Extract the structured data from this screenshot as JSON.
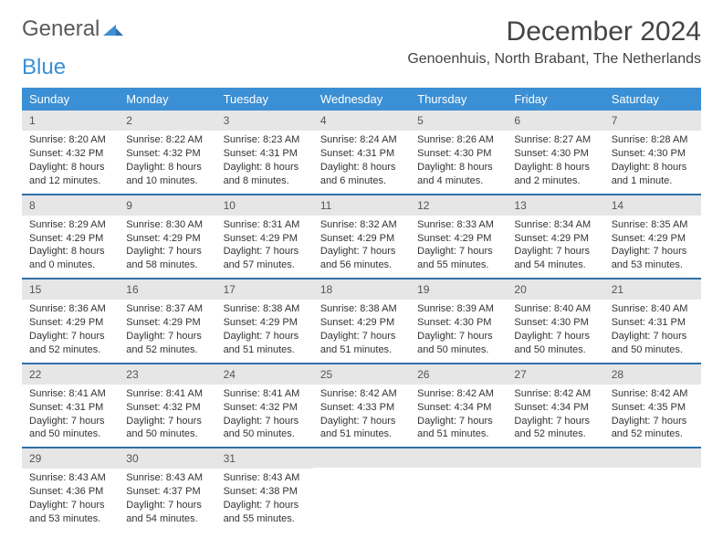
{
  "brand": {
    "part1": "General",
    "part2": "Blue"
  },
  "title": "December 2024",
  "location": "Genoenhuis, North Brabant, The Netherlands",
  "colors": {
    "header_bg": "#3b8fd4",
    "header_text": "#ffffff",
    "daynum_bg": "#e6e6e6",
    "week_divider": "#2f6fa8",
    "body_text": "#333333"
  },
  "dow": [
    "Sunday",
    "Monday",
    "Tuesday",
    "Wednesday",
    "Thursday",
    "Friday",
    "Saturday"
  ],
  "days": [
    {
      "n": "1",
      "sr": "8:20 AM",
      "ss": "4:32 PM",
      "dl": "8 hours and 12 minutes."
    },
    {
      "n": "2",
      "sr": "8:22 AM",
      "ss": "4:32 PM",
      "dl": "8 hours and 10 minutes."
    },
    {
      "n": "3",
      "sr": "8:23 AM",
      "ss": "4:31 PM",
      "dl": "8 hours and 8 minutes."
    },
    {
      "n": "4",
      "sr": "8:24 AM",
      "ss": "4:31 PM",
      "dl": "8 hours and 6 minutes."
    },
    {
      "n": "5",
      "sr": "8:26 AM",
      "ss": "4:30 PM",
      "dl": "8 hours and 4 minutes."
    },
    {
      "n": "6",
      "sr": "8:27 AM",
      "ss": "4:30 PM",
      "dl": "8 hours and 2 minutes."
    },
    {
      "n": "7",
      "sr": "8:28 AM",
      "ss": "4:30 PM",
      "dl": "8 hours and 1 minute."
    },
    {
      "n": "8",
      "sr": "8:29 AM",
      "ss": "4:29 PM",
      "dl": "8 hours and 0 minutes."
    },
    {
      "n": "9",
      "sr": "8:30 AM",
      "ss": "4:29 PM",
      "dl": "7 hours and 58 minutes."
    },
    {
      "n": "10",
      "sr": "8:31 AM",
      "ss": "4:29 PM",
      "dl": "7 hours and 57 minutes."
    },
    {
      "n": "11",
      "sr": "8:32 AM",
      "ss": "4:29 PM",
      "dl": "7 hours and 56 minutes."
    },
    {
      "n": "12",
      "sr": "8:33 AM",
      "ss": "4:29 PM",
      "dl": "7 hours and 55 minutes."
    },
    {
      "n": "13",
      "sr": "8:34 AM",
      "ss": "4:29 PM",
      "dl": "7 hours and 54 minutes."
    },
    {
      "n": "14",
      "sr": "8:35 AM",
      "ss": "4:29 PM",
      "dl": "7 hours and 53 minutes."
    },
    {
      "n": "15",
      "sr": "8:36 AM",
      "ss": "4:29 PM",
      "dl": "7 hours and 52 minutes."
    },
    {
      "n": "16",
      "sr": "8:37 AM",
      "ss": "4:29 PM",
      "dl": "7 hours and 52 minutes."
    },
    {
      "n": "17",
      "sr": "8:38 AM",
      "ss": "4:29 PM",
      "dl": "7 hours and 51 minutes."
    },
    {
      "n": "18",
      "sr": "8:38 AM",
      "ss": "4:29 PM",
      "dl": "7 hours and 51 minutes."
    },
    {
      "n": "19",
      "sr": "8:39 AM",
      "ss": "4:30 PM",
      "dl": "7 hours and 50 minutes."
    },
    {
      "n": "20",
      "sr": "8:40 AM",
      "ss": "4:30 PM",
      "dl": "7 hours and 50 minutes."
    },
    {
      "n": "21",
      "sr": "8:40 AM",
      "ss": "4:31 PM",
      "dl": "7 hours and 50 minutes."
    },
    {
      "n": "22",
      "sr": "8:41 AM",
      "ss": "4:31 PM",
      "dl": "7 hours and 50 minutes."
    },
    {
      "n": "23",
      "sr": "8:41 AM",
      "ss": "4:32 PM",
      "dl": "7 hours and 50 minutes."
    },
    {
      "n": "24",
      "sr": "8:41 AM",
      "ss": "4:32 PM",
      "dl": "7 hours and 50 minutes."
    },
    {
      "n": "25",
      "sr": "8:42 AM",
      "ss": "4:33 PM",
      "dl": "7 hours and 51 minutes."
    },
    {
      "n": "26",
      "sr": "8:42 AM",
      "ss": "4:34 PM",
      "dl": "7 hours and 51 minutes."
    },
    {
      "n": "27",
      "sr": "8:42 AM",
      "ss": "4:34 PM",
      "dl": "7 hours and 52 minutes."
    },
    {
      "n": "28",
      "sr": "8:42 AM",
      "ss": "4:35 PM",
      "dl": "7 hours and 52 minutes."
    },
    {
      "n": "29",
      "sr": "8:43 AM",
      "ss": "4:36 PM",
      "dl": "7 hours and 53 minutes."
    },
    {
      "n": "30",
      "sr": "8:43 AM",
      "ss": "4:37 PM",
      "dl": "7 hours and 54 minutes."
    },
    {
      "n": "31",
      "sr": "8:43 AM",
      "ss": "4:38 PM",
      "dl": "7 hours and 55 minutes."
    }
  ],
  "labels": {
    "sunrise": "Sunrise:",
    "sunset": "Sunset:",
    "daylight": "Daylight:"
  }
}
